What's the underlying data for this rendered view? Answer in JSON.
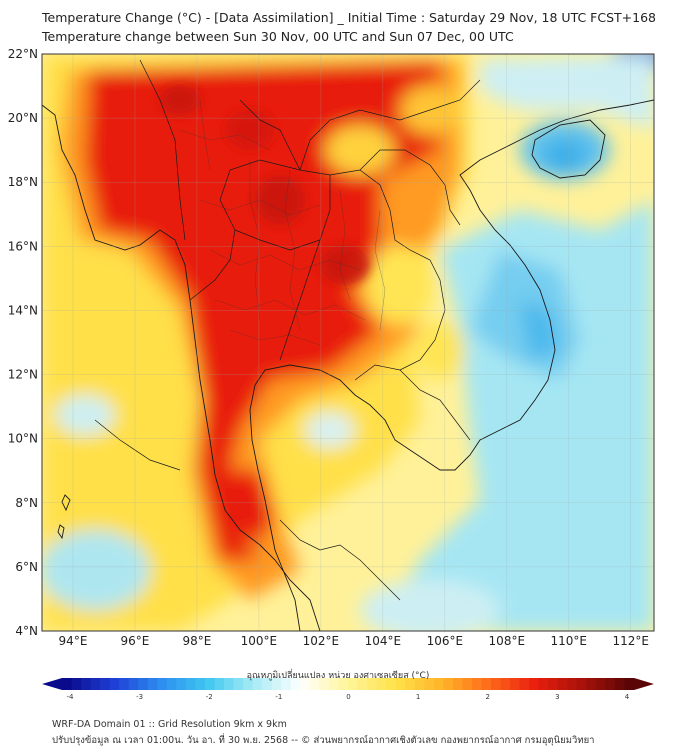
{
  "title": {
    "line1": "Temperature Change (°C) - [Data Assimilation] _ Initial Time : Saturday 29 Nov, 18 UTC FCST+168",
    "line2": "Temperature change between Sun 30 Nov, 00 UTC and Sun 07 Dec, 00 UTC"
  },
  "axes": {
    "lat_labels": [
      "22°N",
      "20°N",
      "18°N",
      "16°N",
      "14°N",
      "12°N",
      "10°N",
      "8°N",
      "6°N",
      "4°N"
    ],
    "lon_labels": [
      "94°E",
      "96°E",
      "98°E",
      "100°E",
      "102°E",
      "104°E",
      "106°E",
      "108°E",
      "110°E",
      "112°E"
    ]
  },
  "colorbar": {
    "label": "อุณหภูมิเปลี่ยนแปลง หน่วย องศาเซลเซียส (°C)",
    "ticks": [
      "-4",
      "-3",
      "-2",
      "-1",
      "0",
      "1",
      "2",
      "3",
      "4"
    ],
    "colors": [
      "#0a0a8c",
      "#1f3fd6",
      "#2d8df0",
      "#3fc8f0",
      "#a9ecf5",
      "#ffffff",
      "#fff59a",
      "#ffe24a",
      "#ffb52a",
      "#ff6a1a",
      "#e81e0e",
      "#a8120a",
      "#5a0606"
    ]
  },
  "footer": {
    "line1": "WRF-DA Domain 01 :: Grid Resolution 9km x 9km",
    "line2": "ปรับปรุงข้อมูล ณ เวลา 01:00น. วัน อา. ที่ 30 พ.ย. 2568 -- © ส่วนพยากรณ์อากาศเชิงตัวเลข กองพยากรณ์อากาศ กรมอุตุนิยมวิทยา"
  }
}
